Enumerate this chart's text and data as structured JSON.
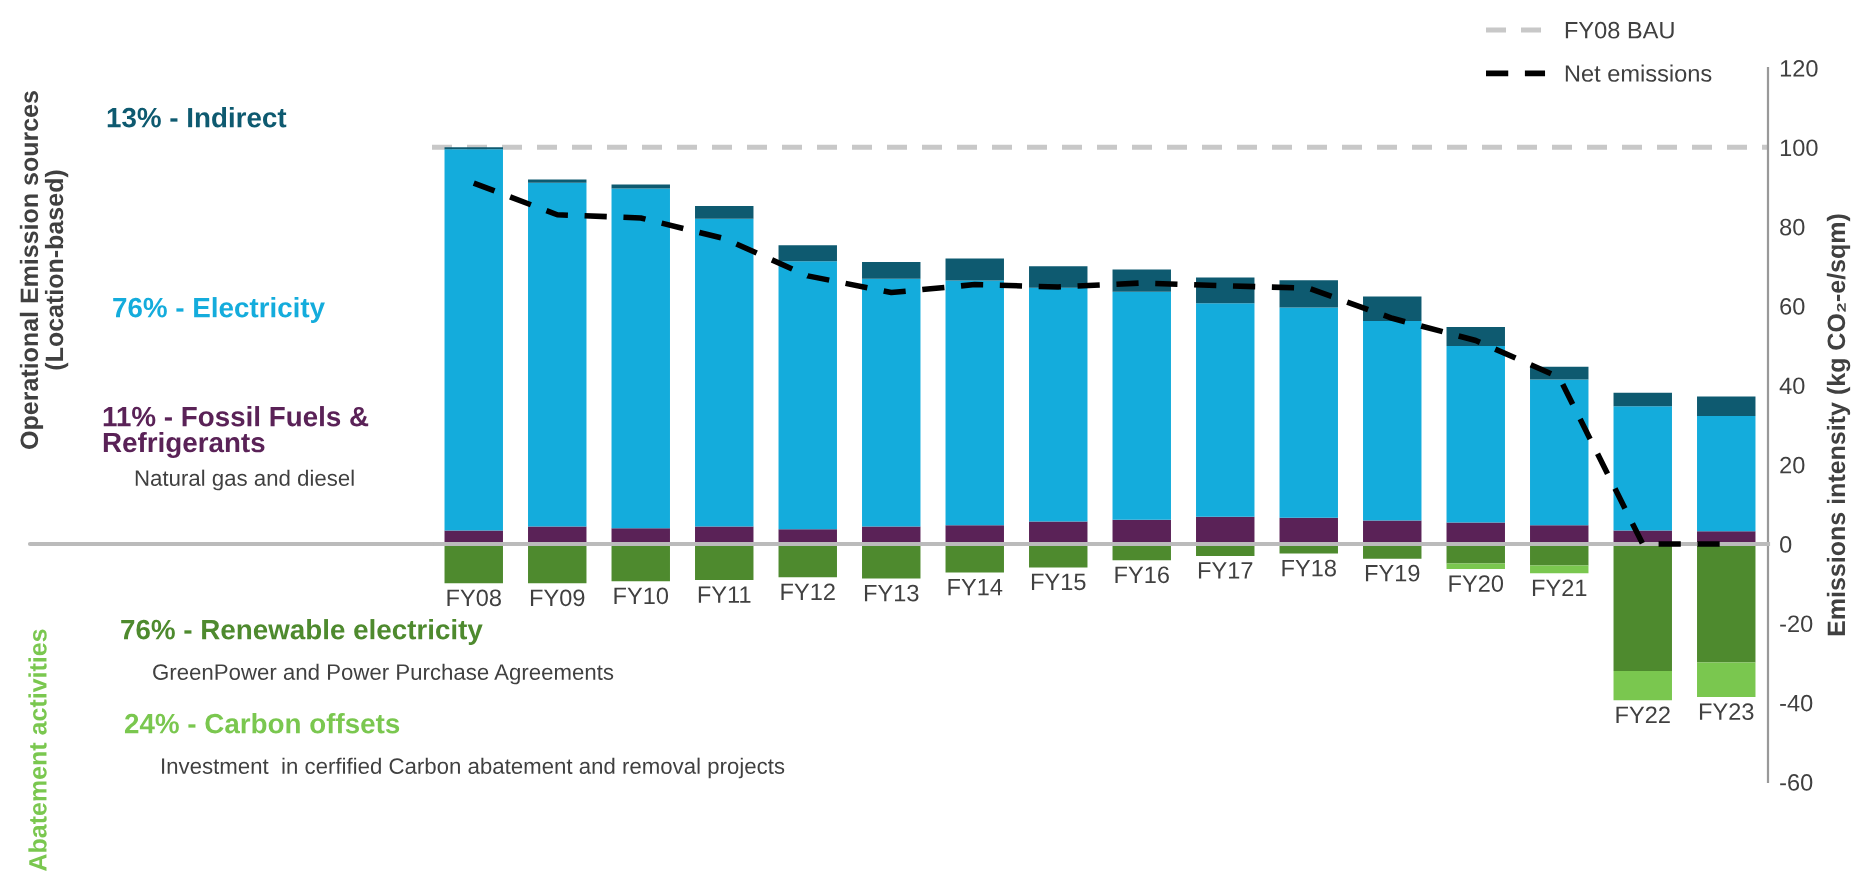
{
  "chart_data": {
    "type": "bar",
    "stacked": true,
    "categories": [
      "FY08",
      "FY09",
      "FY10",
      "FY11",
      "FY12",
      "FY13",
      "FY14",
      "FY15",
      "FY16",
      "FY17",
      "FY18",
      "FY19",
      "FY20",
      "FY21",
      "FY22",
      "FY23"
    ],
    "series": [
      {
        "name": "11% - Fossil Fuels &\nRefrigerants",
        "color": "#5a2257",
        "values": [
          3.4,
          4.4,
          4.0,
          4.4,
          3.7,
          4.4,
          4.7,
          5.7,
          6.1,
          6.9,
          6.6,
          5.9,
          5.4,
          4.7,
          3.4,
          3.2
        ]
      },
      {
        "name": "76% - Electricity",
        "color": "#14acdc",
        "values": [
          96.1,
          86.7,
          85.6,
          77.6,
          67.6,
          62.5,
          61.7,
          58.9,
          57.5,
          53.8,
          53.0,
          50.3,
          44.5,
          36.8,
          31.3,
          29.1
        ]
      },
      {
        "name": "13% - Indirect",
        "color": "#0e5a70",
        "values": [
          0.5,
          0.8,
          1.0,
          3.2,
          4.0,
          4.2,
          5.6,
          5.4,
          5.6,
          6.5,
          6.9,
          6.2,
          4.8,
          3.2,
          3.4,
          4.9
        ]
      },
      {
        "name": "76% - Renewable electricity",
        "color": "#4e8a2e",
        "values": [
          -9.9,
          -9.9,
          -9.4,
          -9.1,
          -8.4,
          -8.7,
          -7.2,
          -5.9,
          -4.1,
          -3.0,
          -2.4,
          -3.7,
          -4.9,
          -5.4,
          -32.0,
          -29.9
        ]
      },
      {
        "name": "24% - Carbon offsets",
        "color": "#7ac74f",
        "values": [
          null,
          null,
          null,
          null,
          null,
          null,
          null,
          null,
          null,
          null,
          null,
          null,
          -1.4,
          -2.0,
          -7.4,
          -8.7
        ]
      },
      {
        "name": "Net emissions",
        "type": "line",
        "color": "#000000",
        "line_style": "dashed",
        "values": [
          91,
          83,
          82.2,
          77,
          67.6,
          63.4,
          65.4,
          64.8,
          65.8,
          65.1,
          64.5,
          56.9,
          51.3,
          42,
          0,
          0
        ]
      }
    ],
    "ref_lines": [
      {
        "axis": "y",
        "value": 100,
        "label": "FY08 BAU",
        "color": "#c8c8c8",
        "line_style": "dashed"
      }
    ],
    "ylabel": "Emissions intensity (kg CO₂-e/sqm)",
    "ylim": [
      -60,
      120
    ],
    "yticks": [
      -60,
      -40,
      -20,
      0,
      20,
      40,
      60,
      80,
      100,
      120
    ],
    "legend": "top right",
    "grid": false,
    "annotations": [
      "Operational Emission sources\n(Location-based)",
      "Natural gas and diesel",
      "Abatement activities",
      "GreenPower and Power Purchase Agreements",
      "Investment  in cerfified Carbon abatement and removal projects"
    ]
  }
}
